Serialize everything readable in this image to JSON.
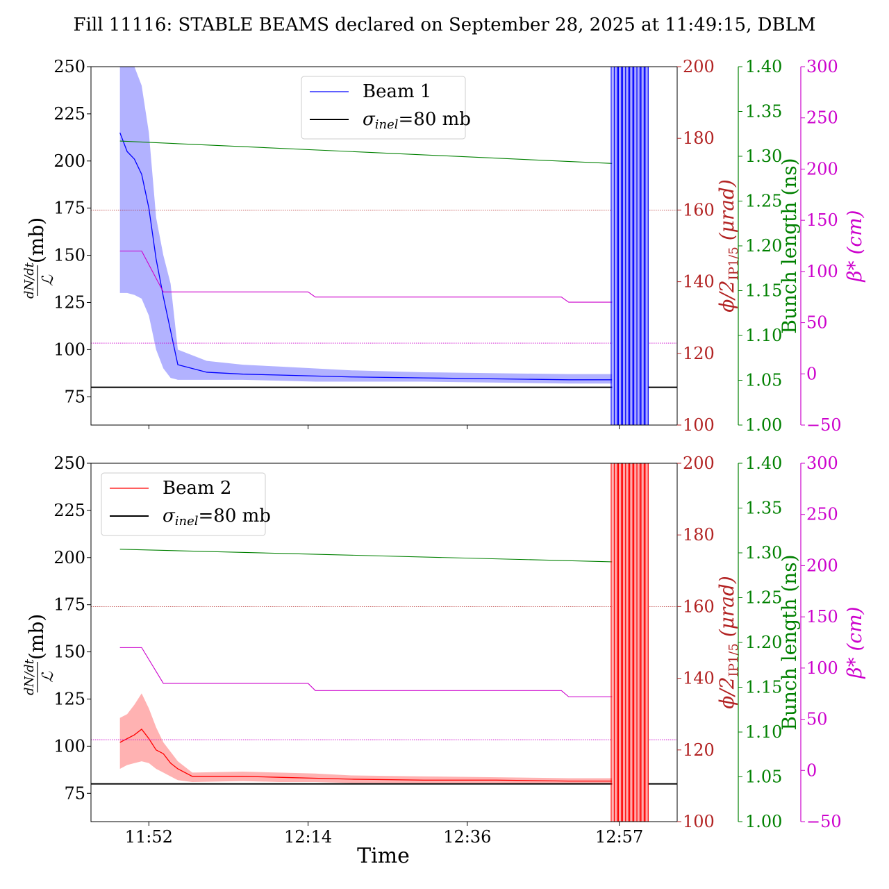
{
  "title": "Fill 11116: STABLE BEAMS declared on September 28, 2025 at 11:49:15, DBLM",
  "xlabel": "Time",
  "colors": {
    "beam1": "#0000ff",
    "beam1_band": "#aaaaff",
    "beam2": "#ff0000",
    "beam2_band": "#ffaaaa",
    "phi": "#b22222",
    "bunch": "#008000",
    "beta": "#cc00cc",
    "ref": "#000000"
  },
  "axes": {
    "left_label": "dN/dt / ℒ (mb)",
    "left_label_num": "dN/dt",
    "left_label_den": "ℒ",
    "left_label_unit": "(mb)",
    "left_ticks": [
      "75",
      "100",
      "125",
      "150",
      "175",
      "200",
      "225",
      "250"
    ],
    "phi_label": "ϕ/2",
    "phi_label_sub": "IP1/5",
    "phi_label_unit": "(μrad)",
    "phi_ticks": [
      "100",
      "120",
      "140",
      "160",
      "180",
      "200"
    ],
    "bunch_label": "Bunch length (ns)",
    "bunch_ticks": [
      "1.00",
      "1.05",
      "1.10",
      "1.15",
      "1.20",
      "1.25",
      "1.30",
      "1.35",
      "1.40"
    ],
    "beta_label": "β* (cm)",
    "beta_ticks": [
      "−50",
      "0",
      "50",
      "100",
      "150",
      "200",
      "250",
      "300"
    ],
    "x_ticks": [
      "11:52",
      "12:14",
      "12:36",
      "12:57"
    ]
  },
  "chart_data": [
    {
      "type": "line",
      "panel": "top",
      "legend": {
        "position": "upper center",
        "items": [
          {
            "label": "Beam 1"
          },
          {
            "label": "σinel=80 mb",
            "sym": "σ",
            "sub": "inel",
            "rest": "=80 mb"
          }
        ]
      },
      "xlim": [
        "11:44",
        "13:05"
      ],
      "ylim": [
        60,
        250
      ],
      "phi_lim": [
        100,
        200
      ],
      "bunch_lim": [
        1.0,
        1.4
      ],
      "beta_lim": [
        -50,
        300
      ],
      "series": [
        {
          "name": "Beam 1",
          "axis": "left",
          "x": [
            "11:48",
            "11:49",
            "11:50",
            "11:51",
            "11:52",
            "11:53",
            "11:54",
            "11:55",
            "11:56",
            "12:00",
            "12:05",
            "12:10",
            "12:15",
            "12:20",
            "12:30",
            "12:40",
            "12:50",
            "12:55",
            "12:56"
          ],
          "y": [
            215,
            205,
            201,
            193,
            175,
            148,
            128,
            110,
            92,
            88,
            87,
            86.5,
            86,
            85.5,
            85,
            84.5,
            84,
            84,
            84
          ],
          "lower": [
            130,
            130,
            129,
            127,
            118,
            100,
            90,
            85,
            84,
            84,
            84,
            83.5,
            83,
            83,
            83,
            82.5,
            82,
            82,
            82
          ],
          "upper": [
            250,
            250,
            250,
            240,
            215,
            170,
            150,
            135,
            100,
            94,
            92,
            91,
            90,
            89,
            88,
            87.5,
            87,
            87,
            87
          ]
        },
        {
          "name": "σinel=80 mb",
          "axis": "left",
          "y_const": 80
        },
        {
          "axis": "bunch",
          "x": [
            "11:48",
            "12:56"
          ],
          "y": [
            1.317,
            1.292
          ]
        },
        {
          "axis": "beta",
          "x": [
            "11:48",
            "11:51",
            "11:54",
            "12:14",
            "12:15",
            "12:49",
            "12:50",
            "13:01"
          ],
          "y": [
            120,
            120,
            80,
            80,
            75,
            75,
            70,
            70
          ]
        },
        {
          "axis": "phi",
          "y_const": 160,
          "style": "dotted"
        },
        {
          "axis": "beta",
          "y_const": 30,
          "style": "dotted"
        }
      ],
      "spike_region": {
        "x_start": "12:56",
        "x_end": "13:01",
        "y": [
          60,
          250
        ]
      }
    },
    {
      "type": "line",
      "panel": "bottom",
      "legend": {
        "position": "upper left",
        "items": [
          {
            "label": "Beam 2"
          },
          {
            "label": "σinel=80 mb",
            "sym": "σ",
            "sub": "inel",
            "rest": "=80 mb"
          }
        ]
      },
      "xlim": [
        "11:44",
        "13:05"
      ],
      "ylim": [
        60,
        250
      ],
      "phi_lim": [
        100,
        200
      ],
      "bunch_lim": [
        1.0,
        1.4
      ],
      "beta_lim": [
        -50,
        300
      ],
      "series": [
        {
          "name": "Beam 2",
          "axis": "left",
          "x": [
            "11:48",
            "11:49",
            "11:50",
            "11:51",
            "11:52",
            "11:53",
            "11:54",
            "11:55",
            "11:56",
            "11:58",
            "12:05",
            "12:10",
            "12:15",
            "12:20",
            "12:30",
            "12:40",
            "12:50",
            "12:55",
            "12:56"
          ],
          "y": [
            102,
            104,
            106,
            109,
            104,
            98,
            96,
            91,
            88,
            84,
            84,
            83.5,
            83,
            82.5,
            82,
            82,
            81.5,
            81.5,
            81.5
          ],
          "lower": [
            88,
            90,
            91,
            92,
            91,
            88,
            86,
            84,
            82,
            81,
            81.5,
            81,
            81,
            80.5,
            80.5,
            80.5,
            80,
            80,
            80
          ],
          "upper": [
            115,
            117,
            122,
            128,
            120,
            110,
            102,
            97,
            92,
            86,
            86.5,
            86,
            85.5,
            84.5,
            84,
            83.5,
            83,
            83,
            83
          ]
        },
        {
          "name": "σinel=80 mb",
          "axis": "left",
          "y_const": 80
        },
        {
          "axis": "bunch",
          "x": [
            "11:48",
            "12:56"
          ],
          "y": [
            1.304,
            1.29
          ]
        },
        {
          "axis": "beta",
          "x": [
            "11:48",
            "11:51",
            "11:54",
            "12:14",
            "12:15",
            "12:49",
            "12:50",
            "13:01"
          ],
          "y": [
            120,
            120,
            85,
            85,
            78,
            78,
            72,
            72
          ]
        },
        {
          "axis": "phi",
          "y_const": 160,
          "style": "dotted"
        },
        {
          "axis": "beta",
          "y_const": 30,
          "style": "dotted"
        }
      ],
      "spike_region": {
        "x_start": "12:56",
        "x_end": "13:01",
        "y": [
          60,
          250
        ]
      }
    }
  ]
}
